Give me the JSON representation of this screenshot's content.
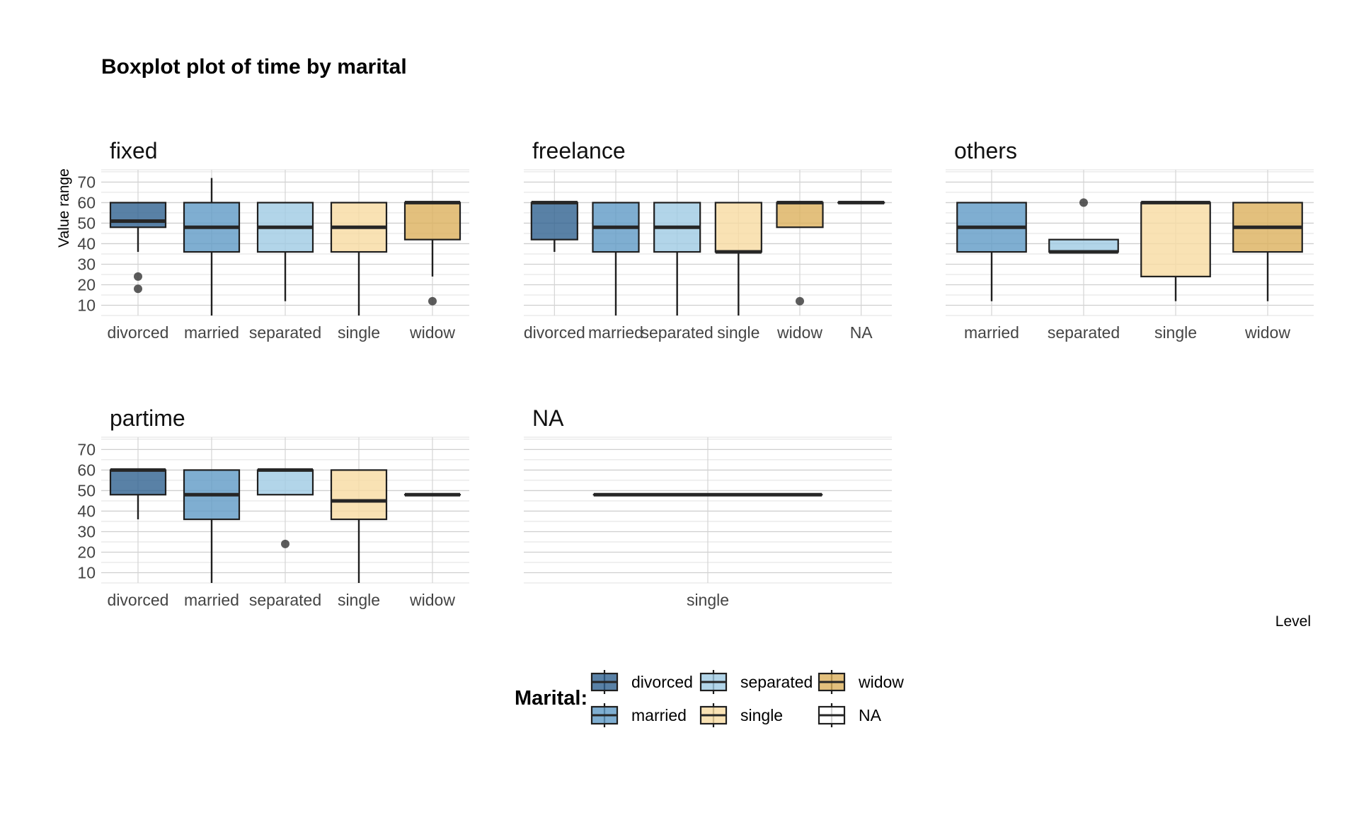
{
  "chart_data": {
    "type": "boxplot",
    "title": "Boxplot plot of time by marital",
    "ylabel": "Value range",
    "xlabel": "Level",
    "ylim": [
      5,
      76
    ],
    "yticks": [
      10,
      20,
      30,
      40,
      50,
      60,
      70
    ],
    "grid": true,
    "legend": {
      "title": "Marital:",
      "position": "bottom",
      "items": [
        {
          "label": "divorced",
          "color": "#2f6190"
        },
        {
          "label": "married",
          "color": "#5f9ac5"
        },
        {
          "label": "separated",
          "color": "#9fcbe4"
        },
        {
          "label": "single",
          "color": "#f7dba1"
        },
        {
          "label": "widow",
          "color": "#dcb05d"
        },
        {
          "label": "NA",
          "color": "#ffffff"
        }
      ]
    },
    "panels": [
      {
        "name": "fixed",
        "categories": [
          "divorced",
          "married",
          "separated",
          "single",
          "widow"
        ],
        "boxes": [
          {
            "category": "divorced",
            "q1": 48,
            "median": 51,
            "q3": 60,
            "whisker_low": 36,
            "whisker_high": 60,
            "outliers": [
              24,
              18
            ]
          },
          {
            "category": "married",
            "q1": 36,
            "median": 48,
            "q3": 60,
            "whisker_low": 5,
            "whisker_high": 72,
            "outliers": []
          },
          {
            "category": "separated",
            "q1": 36,
            "median": 48,
            "q3": 60,
            "whisker_low": 12,
            "whisker_high": 60,
            "outliers": []
          },
          {
            "category": "single",
            "q1": 36,
            "median": 48,
            "q3": 60,
            "whisker_low": 5,
            "whisker_high": 60,
            "outliers": []
          },
          {
            "category": "widow",
            "q1": 42,
            "median": 60,
            "q3": 60,
            "whisker_low": 24,
            "whisker_high": 60,
            "outliers": [
              12
            ]
          }
        ]
      },
      {
        "name": "freelance",
        "categories": [
          "divorced",
          "married",
          "separated",
          "single",
          "widow",
          "NA"
        ],
        "boxes": [
          {
            "category": "divorced",
            "q1": 42,
            "median": 60,
            "q3": 60,
            "whisker_low": 36,
            "whisker_high": 60,
            "outliers": []
          },
          {
            "category": "married",
            "q1": 36,
            "median": 48,
            "q3": 60,
            "whisker_low": 5,
            "whisker_high": 60,
            "outliers": []
          },
          {
            "category": "separated",
            "q1": 36,
            "median": 48,
            "q3": 60,
            "whisker_low": 5,
            "whisker_high": 60,
            "outliers": []
          },
          {
            "category": "single",
            "q1": 36,
            "median": 36,
            "q3": 60,
            "whisker_low": 5,
            "whisker_high": 60,
            "outliers": []
          },
          {
            "category": "widow",
            "q1": 48,
            "median": 60,
            "q3": 60,
            "whisker_low": 48,
            "whisker_high": 60,
            "outliers": [
              12
            ]
          },
          {
            "category": "NA",
            "q1": 60,
            "median": 60,
            "q3": 60,
            "whisker_low": 60,
            "whisker_high": 60,
            "outliers": []
          }
        ]
      },
      {
        "name": "others",
        "categories": [
          "married",
          "separated",
          "single",
          "widow"
        ],
        "boxes": [
          {
            "category": "married",
            "q1": 36,
            "median": 48,
            "q3": 60,
            "whisker_low": 12,
            "whisker_high": 60,
            "outliers": []
          },
          {
            "category": "separated",
            "q1": 36,
            "median": 36,
            "q3": 42,
            "whisker_low": 36,
            "whisker_high": 42,
            "outliers": [
              60
            ]
          },
          {
            "category": "single",
            "q1": 24,
            "median": 60,
            "q3": 60,
            "whisker_low": 12,
            "whisker_high": 60,
            "outliers": []
          },
          {
            "category": "widow",
            "q1": 36,
            "median": 48,
            "q3": 60,
            "whisker_low": 12,
            "whisker_high": 60,
            "outliers": []
          }
        ]
      },
      {
        "name": "partime",
        "categories": [
          "divorced",
          "married",
          "separated",
          "single",
          "widow"
        ],
        "boxes": [
          {
            "category": "divorced",
            "q1": 48,
            "median": 60,
            "q3": 60,
            "whisker_low": 36,
            "whisker_high": 60,
            "outliers": []
          },
          {
            "category": "married",
            "q1": 36,
            "median": 48,
            "q3": 60,
            "whisker_low": 5,
            "whisker_high": 60,
            "outliers": []
          },
          {
            "category": "separated",
            "q1": 48,
            "median": 60,
            "q3": 60,
            "whisker_low": 48,
            "whisker_high": 60,
            "outliers": [
              24
            ]
          },
          {
            "category": "single",
            "q1": 36,
            "median": 45,
            "q3": 60,
            "whisker_low": 5,
            "whisker_high": 60,
            "outliers": []
          },
          {
            "category": "widow",
            "q1": 48,
            "median": 48,
            "q3": 48,
            "whisker_low": 48,
            "whisker_high": 48,
            "outliers": []
          }
        ]
      },
      {
        "name": "NA",
        "categories": [
          "single"
        ],
        "boxes": [
          {
            "category": "single",
            "q1": 48,
            "median": 48,
            "q3": 48,
            "whisker_low": 48,
            "whisker_high": 48,
            "outliers": []
          }
        ]
      }
    ]
  }
}
